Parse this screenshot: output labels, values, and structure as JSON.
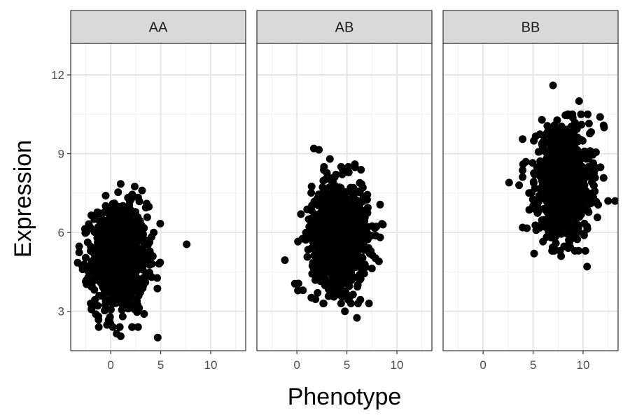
{
  "chart_data": {
    "type": "scatter",
    "facet_by": "genotype",
    "xlabel": "Phenotype",
    "ylabel": "Expression",
    "xlim": [
      -4,
      13.5
    ],
    "ylim": [
      1.5,
      13.2
    ],
    "x_ticks": [
      0,
      5,
      10
    ],
    "y_ticks": [
      3,
      6,
      9,
      12
    ],
    "grid": true,
    "theme": "bw",
    "point_color": "#000000",
    "panels": [
      {
        "label": "AA",
        "n_points": 1000,
        "x_center": 0.9,
        "x_sd": 1.35,
        "y_center": 5.0,
        "y_sd": 1.0,
        "points": [
          [
            -3.3,
            4.85
          ],
          [
            7.6,
            5.55
          ],
          [
            4.7,
            2.0
          ],
          [
            1.0,
            2.05
          ],
          [
            0.6,
            2.15
          ],
          [
            1.0,
            7.85
          ],
          [
            2.4,
            7.75
          ],
          [
            4.3,
            6.0
          ],
          [
            -2.0,
            3.3
          ],
          [
            4.1,
            4.3
          ],
          [
            3.6,
            7.1
          ],
          [
            -2.8,
            4.6
          ]
        ]
      },
      {
        "label": "AB",
        "n_points": 1000,
        "x_center": 4.3,
        "x_sd": 1.4,
        "y_center": 5.9,
        "y_sd": 1.0,
        "points": [
          [
            -1.2,
            4.95
          ],
          [
            1.7,
            9.2
          ],
          [
            2.2,
            9.15
          ],
          [
            6.0,
            2.75
          ],
          [
            4.8,
            3.0
          ],
          [
            8.6,
            6.3
          ],
          [
            8.2,
            4.9
          ],
          [
            -0.2,
            4.05
          ],
          [
            0.6,
            3.8
          ],
          [
            3.3,
            8.8
          ],
          [
            5.8,
            8.6
          ],
          [
            0.4,
            6.7
          ]
        ]
      },
      {
        "label": "BB",
        "n_points": 1000,
        "x_center": 8.0,
        "x_sd": 1.35,
        "y_center": 7.9,
        "y_sd": 1.0,
        "points": [
          [
            7.0,
            11.6
          ],
          [
            2.6,
            7.9
          ],
          [
            13.2,
            7.2
          ],
          [
            10.4,
            4.7
          ],
          [
            9.6,
            11.0
          ],
          [
            5.1,
            5.2
          ],
          [
            11.7,
            10.4
          ],
          [
            12.1,
            10.0
          ],
          [
            3.6,
            7.8
          ],
          [
            7.8,
            5.1
          ],
          [
            12.5,
            7.2
          ],
          [
            4.0,
            8.6
          ]
        ]
      }
    ]
  }
}
